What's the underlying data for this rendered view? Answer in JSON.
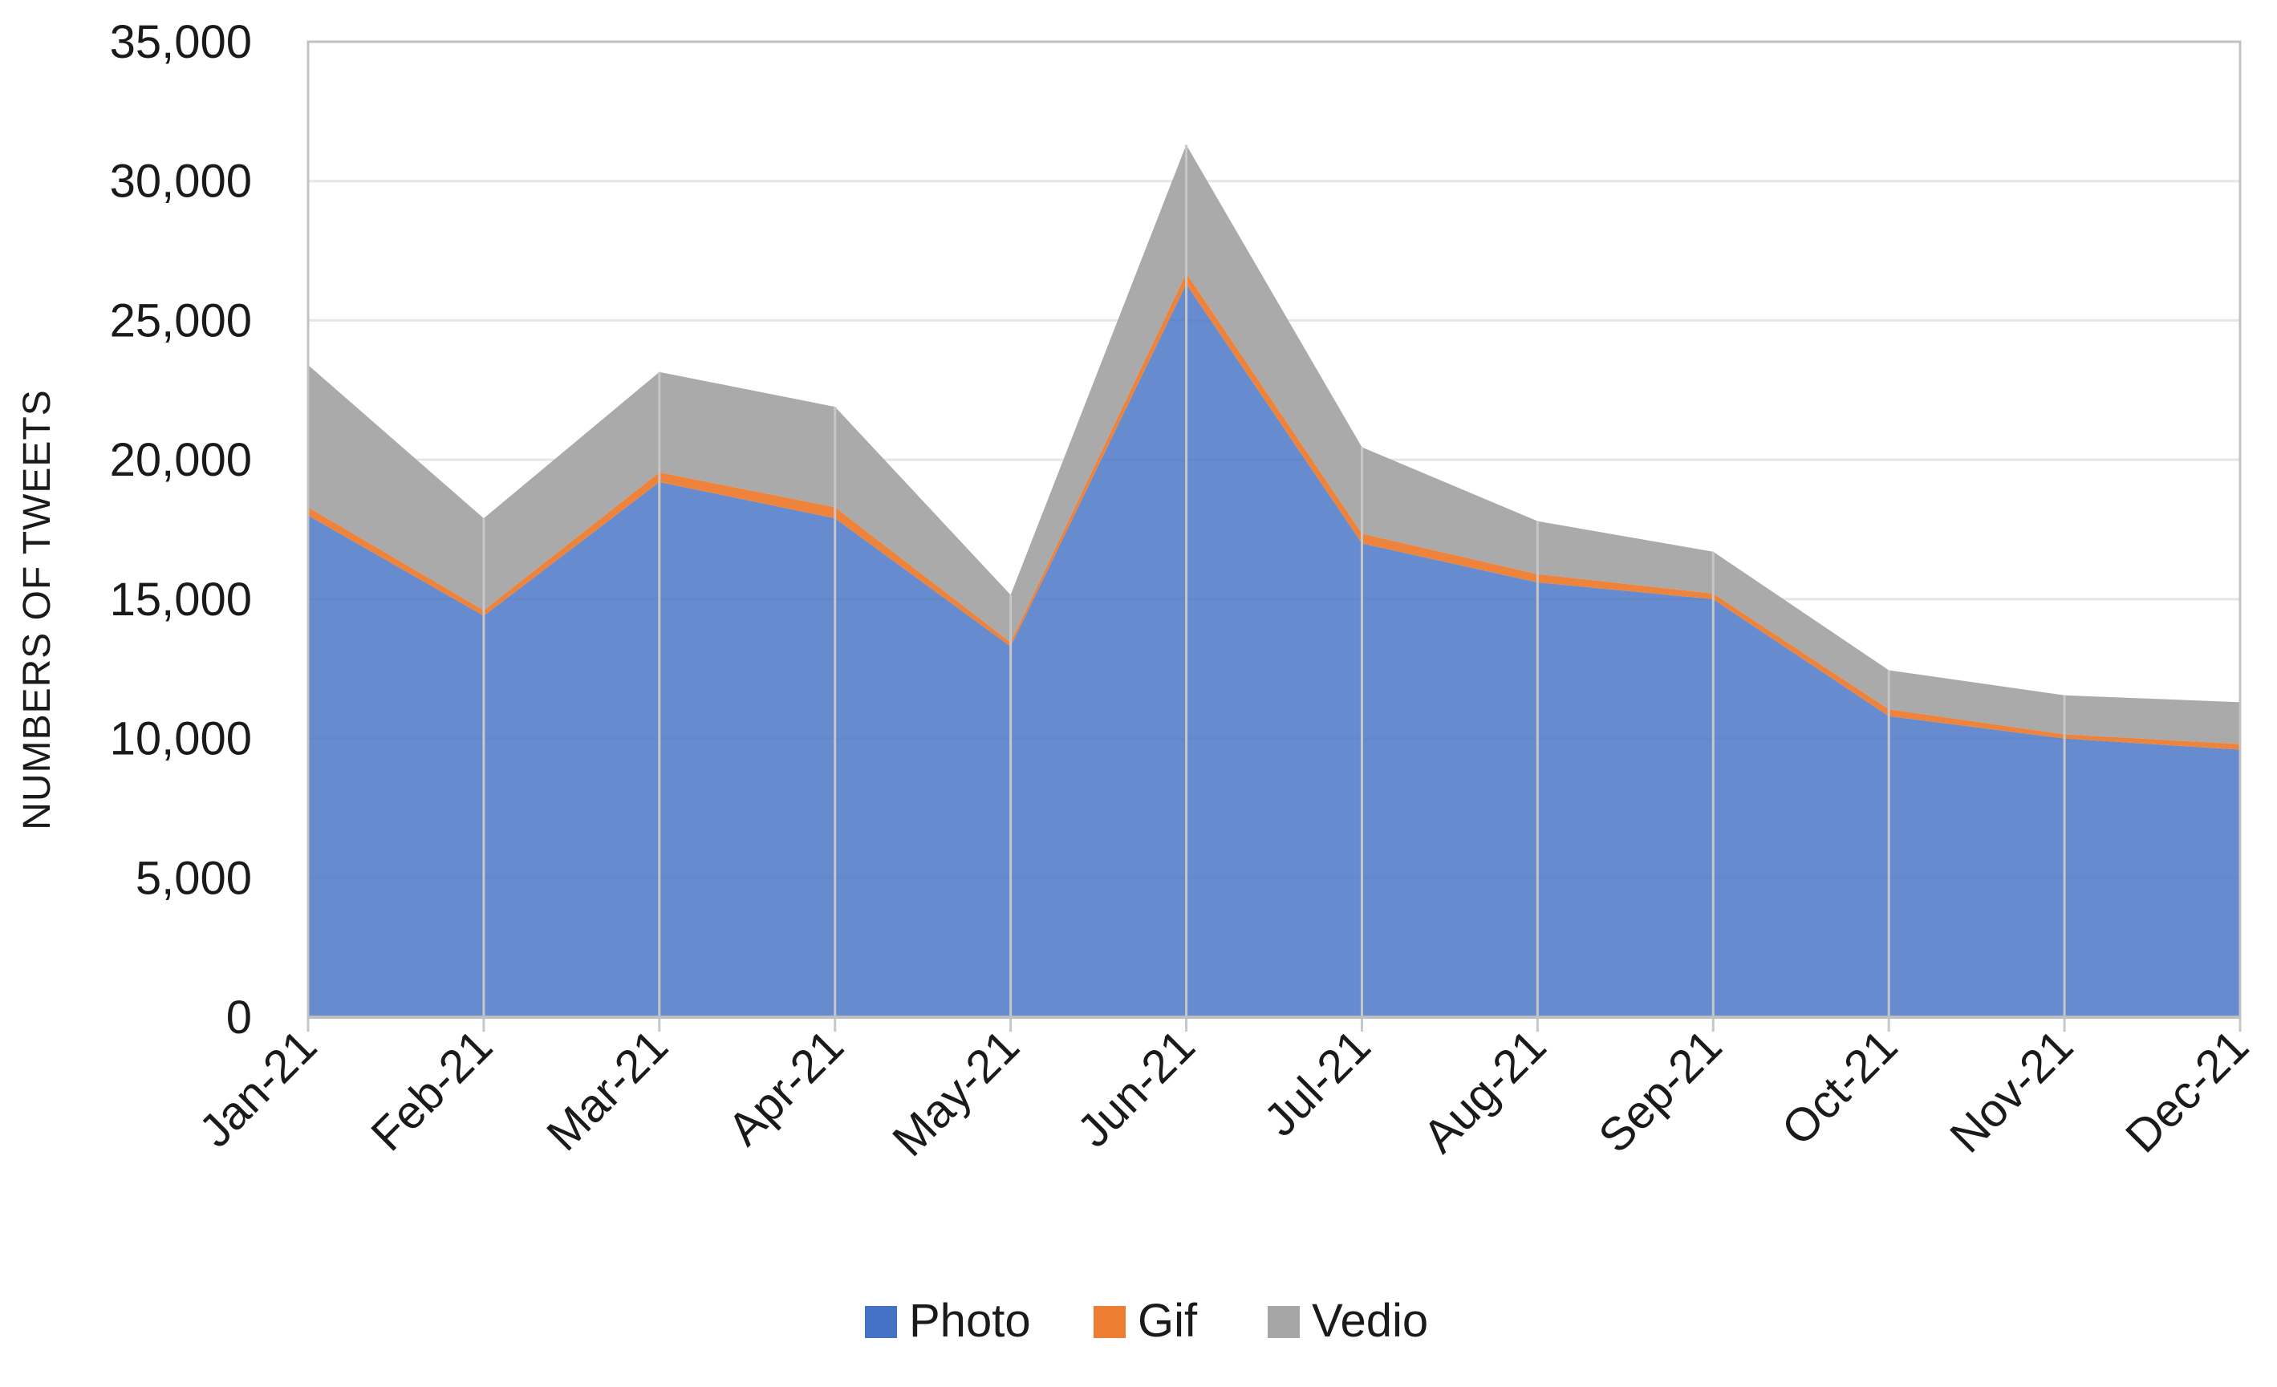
{
  "chart_data": {
    "type": "area",
    "stacked": true,
    "title": "",
    "xlabel": "",
    "ylabel": "NUMBERS OF TWEETS",
    "ylim": [
      0,
      35000
    ],
    "yticks": [
      "0",
      "5,000",
      "10,000",
      "15,000",
      "20,000",
      "25,000",
      "30,000",
      "35,000"
    ],
    "ytick_values": [
      0,
      5000,
      10000,
      15000,
      20000,
      25000,
      30000,
      35000
    ],
    "categories": [
      "Jan-21",
      "Feb-21",
      "Mar-21",
      "Apr-21",
      "May-21",
      "Jun-21",
      "Jul-21",
      "Aug-21",
      "Sep-21",
      "Oct-21",
      "Nov-21",
      "Dec-21"
    ],
    "series": [
      {
        "name": "Photo",
        "color": "#4472C4",
        "values": [
          18000,
          14400,
          19200,
          17900,
          13300,
          26300,
          17000,
          15600,
          15000,
          10800,
          10000,
          9600
        ]
      },
      {
        "name": "Gif",
        "color": "#ED7D31",
        "values": [
          300,
          200,
          350,
          400,
          150,
          400,
          350,
          300,
          200,
          250,
          150,
          200
        ]
      },
      {
        "name": "Vedio",
        "color": "#A5A5A5",
        "values": [
          5100,
          3300,
          3600,
          3600,
          1700,
          4600,
          3100,
          1900,
          1500,
          1400,
          1400,
          1500
        ]
      }
    ],
    "grid": true,
    "legend_position": "bottom"
  }
}
